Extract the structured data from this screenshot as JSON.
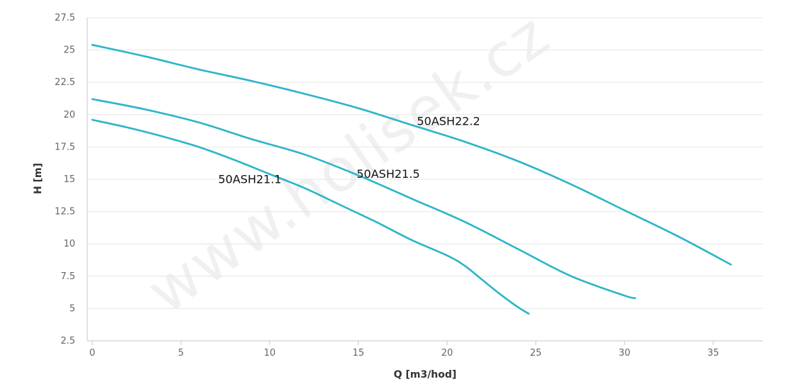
{
  "chart_data": {
    "type": "line",
    "title": "",
    "xlabel": "Q [m3/hod]",
    "ylabel": "H [m]",
    "xlim": [
      0,
      38
    ],
    "ylim": [
      2.5,
      27.5
    ],
    "x_ticks": [
      0,
      5,
      10,
      15,
      20,
      25,
      30,
      35
    ],
    "x_tick_labels": [
      "0",
      "5",
      "10",
      "15",
      "20",
      "25",
      "30",
      "35"
    ],
    "y_ticks": [
      2.5,
      5,
      7.5,
      10,
      12.5,
      15,
      17.5,
      20,
      22.5,
      25,
      27.5
    ],
    "y_tick_labels": [
      "2.5",
      "5",
      "7.5",
      "10",
      "12.5",
      "15",
      "17.5",
      "20",
      "22.5",
      "25",
      "27.5"
    ],
    "grid": true,
    "legend": "none",
    "watermark": "www.holisek.cz",
    "colors": {
      "series": "#2bb5c9",
      "grid": "#e6e6e6",
      "axis": "#c0cad6"
    },
    "series": [
      {
        "name": "50ASH21.1",
        "x": [
          0,
          2,
          4,
          6,
          8,
          10,
          12,
          14,
          16,
          18,
          20,
          21,
          22,
          23,
          24,
          24.6
        ],
        "y": [
          19.6,
          19.0,
          18.3,
          17.5,
          16.5,
          15.4,
          14.3,
          13.0,
          11.7,
          10.3,
          9.1,
          8.3,
          7.2,
          6.1,
          5.1,
          4.6
        ],
        "label_pos": {
          "x": 7.1,
          "y": 14.7
        }
      },
      {
        "name": "50ASH21.5",
        "x": [
          0,
          3,
          6,
          9,
          12,
          15,
          18,
          21,
          24,
          27,
          30,
          30.6
        ],
        "y": [
          21.2,
          20.4,
          19.4,
          18.1,
          16.9,
          15.3,
          13.5,
          11.7,
          9.6,
          7.5,
          6.0,
          5.8
        ],
        "label_pos": {
          "x": 14.9,
          "y": 15.1
        }
      },
      {
        "name": "50ASH22.2",
        "x": [
          0,
          3,
          6,
          9,
          12,
          15,
          18,
          21,
          24,
          27,
          30,
          33,
          36
        ],
        "y": [
          25.4,
          24.5,
          23.5,
          22.6,
          21.6,
          20.5,
          19.2,
          17.9,
          16.4,
          14.6,
          12.6,
          10.6,
          8.4
        ],
        "label_pos": {
          "x": 18.3,
          "y": 19.2
        }
      }
    ]
  }
}
